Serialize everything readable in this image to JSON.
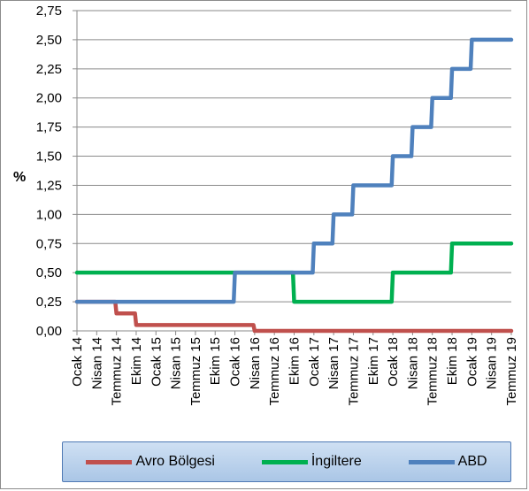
{
  "chart_data": {
    "type": "line",
    "title": "",
    "xlabel": "",
    "ylabel": "%",
    "ylim": [
      0,
      2.75
    ],
    "yticks": [
      "0,00",
      "0,25",
      "0,50",
      "0,75",
      "1,00",
      "1,25",
      "1,50",
      "1,75",
      "2,00",
      "2,25",
      "2,50",
      "2,75"
    ],
    "categories": [
      "Ocak 14",
      "Nisan 14",
      "Temmuz 14",
      "Ekim 14",
      "Ocak 15",
      "Nisan 15",
      "Temmuz 15",
      "Ekim 15",
      "Ocak 16",
      "Nisan 16",
      "Temmuz 16",
      "Ekim 16",
      "Ocak 17",
      "Nisan 17",
      "Temmuz 17",
      "Ekim 17",
      "Ocak 18",
      "Nisan 18",
      "Temmuz 18",
      "Ekim 18",
      "Ocak 19",
      "Nisan 19",
      "Temmuz 19"
    ],
    "grid": true,
    "legend_position": "bottom",
    "series": [
      {
        "name": "Avro Bölgesi",
        "color": "#c0504d",
        "values": [
          0.25,
          0.25,
          0.15,
          0.05,
          0.05,
          0.05,
          0.05,
          0.05,
          0.05,
          0.0,
          0.0,
          0.0,
          0.0,
          0.0,
          0.0,
          0.0,
          0.0,
          0.0,
          0.0,
          0.0,
          0.0,
          0.0,
          0.0
        ]
      },
      {
        "name": "İngiltere",
        "color": "#00b050",
        "values": [
          0.5,
          0.5,
          0.5,
          0.5,
          0.5,
          0.5,
          0.5,
          0.5,
          0.5,
          0.5,
          0.5,
          0.25,
          0.25,
          0.25,
          0.25,
          0.25,
          0.5,
          0.5,
          0.5,
          0.75,
          0.75,
          0.75,
          0.75
        ]
      },
      {
        "name": "ABD",
        "color": "#4f81bd",
        "values": [
          0.25,
          0.25,
          0.25,
          0.25,
          0.25,
          0.25,
          0.25,
          0.25,
          0.5,
          0.5,
          0.5,
          0.5,
          0.75,
          1.0,
          1.25,
          1.25,
          1.5,
          1.75,
          2.0,
          2.25,
          2.5,
          2.5,
          2.5
        ]
      }
    ]
  }
}
